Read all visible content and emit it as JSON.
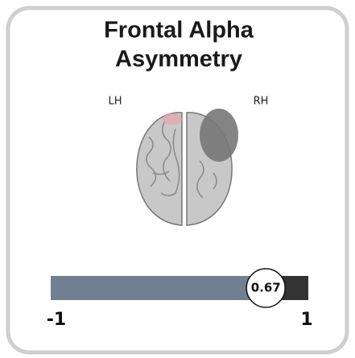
{
  "title": [
    "Frontal Alpha",
    "Asymmetry"
  ],
  "left_label": "LH",
  "right_label": "RH",
  "scale": {
    "min": -1,
    "max": 1,
    "value": 0.67
  }
}
